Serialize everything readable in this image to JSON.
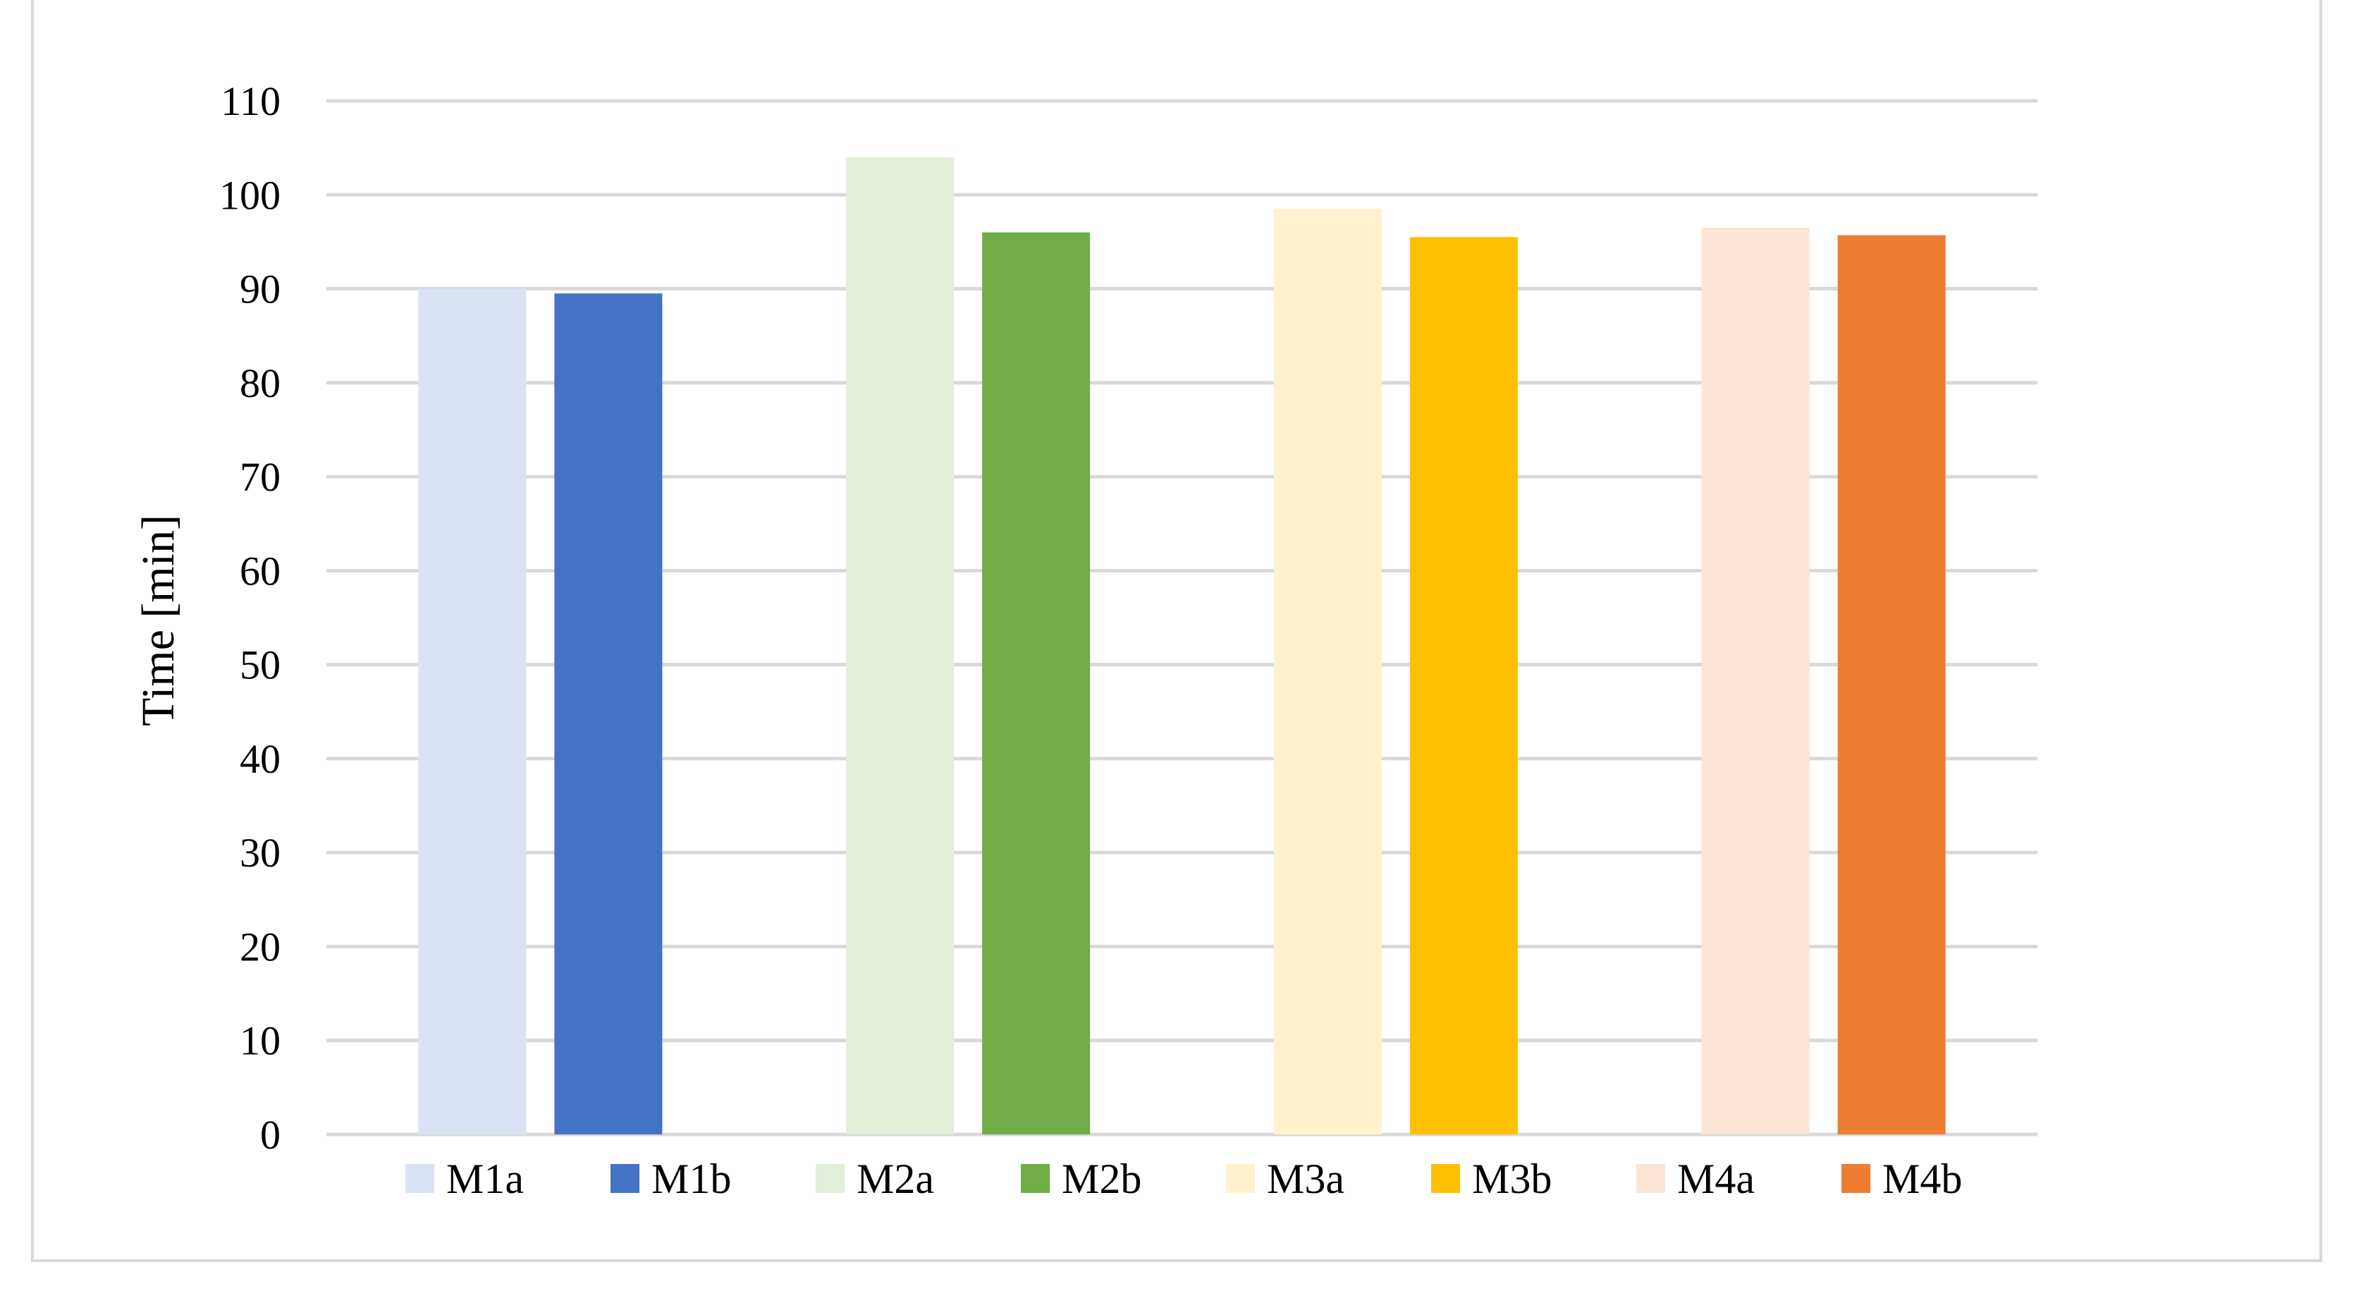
{
  "chart_data": {
    "type": "bar",
    "title": "",
    "xlabel": "",
    "ylabel": "Time [min]",
    "ylim": [
      0,
      110
    ],
    "yticks": [
      0,
      10,
      20,
      30,
      40,
      50,
      60,
      70,
      80,
      90,
      100,
      110
    ],
    "grid": true,
    "legend_position": "bottom",
    "groups": 4,
    "series": [
      {
        "name": "M1a",
        "value": 90,
        "group": 0,
        "color": "#dae3f3"
      },
      {
        "name": "M1b",
        "value": 89.5,
        "group": 0,
        "color": "#4472c4"
      },
      {
        "name": "M2a",
        "value": 104,
        "group": 1,
        "color": "#e2efd9"
      },
      {
        "name": "M2b",
        "value": 96,
        "group": 1,
        "color": "#70ad47"
      },
      {
        "name": "M3a",
        "value": 98.5,
        "group": 2,
        "color": "#fff2cc"
      },
      {
        "name": "M3b",
        "value": 95.5,
        "group": 2,
        "color": "#ffc000"
      },
      {
        "name": "M4a",
        "value": 96.5,
        "group": 3,
        "color": "#fbe5d6"
      },
      {
        "name": "M4b",
        "value": 95.7,
        "group": 3,
        "color": "#ed7d31"
      }
    ]
  }
}
